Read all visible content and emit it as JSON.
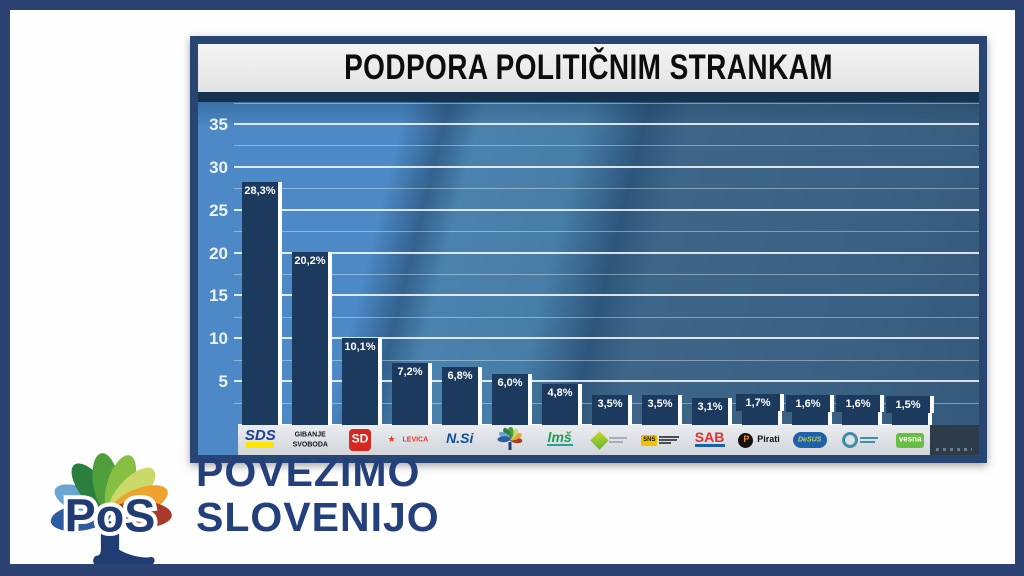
{
  "panel": {
    "title": "PODPORA POLITIČNIM STRANKAM"
  },
  "branding": {
    "logo_text": "PoS",
    "line1": "POVEŽIMO",
    "line2": "SLOVENIJO"
  },
  "colors": {
    "frame": "#2b4273",
    "panel_border": "#294672",
    "title_bar": "#e9e9e9",
    "bar": "#1c3a5e",
    "bar_edge": "#ffffff",
    "brand_navy": "#23407c",
    "strip_bg": "#d8dbe0"
  },
  "chart_data": {
    "type": "bar",
    "title": "PODPORA POLITIČNIM STRANKAM",
    "categories": [
      "SDS",
      "Gibanje Svoboda",
      "SD",
      "Levica",
      "N.Si",
      "Povežimo Slovenijo",
      "LMŠ",
      "Naša dežela",
      "SNS",
      "SAB",
      "Pirati",
      "DeSUS",
      "Dobra država",
      "Vesna"
    ],
    "values": [
      28.3,
      20.2,
      10.1,
      7.2,
      6.8,
      6.0,
      4.8,
      3.5,
      3.5,
      3.1,
      1.7,
      1.6,
      1.6,
      1.5
    ],
    "value_labels": [
      "28,3%",
      "20,2%",
      "10,1%",
      "7,2%",
      "6,8%",
      "6,0%",
      "4,8%",
      "3,5%",
      "3,5%",
      "3,1%",
      "1,7%",
      "1,6%",
      "1,6%",
      "1,5%"
    ],
    "xlabel": "",
    "ylabel": "",
    "y_ticks": [
      5,
      10,
      15,
      20,
      25,
      30,
      35
    ],
    "ylim": [
      0,
      37.5
    ],
    "grid": "horizontal major every 5, minor every 2.5",
    "legend": "none"
  },
  "parties": [
    {
      "name": "SDS",
      "logo": {
        "style": "sds",
        "text": "SDS",
        "color": "#1c3f9d",
        "accent": "#ffe600"
      }
    },
    {
      "name": "Gibanje Svoboda",
      "logo": {
        "style": "stack",
        "lines": [
          "GIBANJE",
          "SVOBODA"
        ],
        "color": "#141414"
      }
    },
    {
      "name": "SD",
      "logo": {
        "style": "badge",
        "text": "SD",
        "bg": "#d6281f",
        "fg": "#ffffff"
      }
    },
    {
      "name": "Levica",
      "logo": {
        "style": "star",
        "text": "LEVICA",
        "color": "#e23b2e"
      }
    },
    {
      "name": "N.Si",
      "logo": {
        "style": "italic",
        "text": "N.Si",
        "color": "#0c4da2"
      }
    },
    {
      "name": "Povežimo Slovenijo",
      "logo": {
        "style": "flower",
        "petals": [
          "#a8392b",
          "#eea22f",
          "#cbd968",
          "#4f9e3b",
          "#2b7f3e",
          "#6aa6cf",
          "#2d5ca3"
        ],
        "trunk": "#1f3d73"
      }
    },
    {
      "name": "LMŠ",
      "logo": {
        "style": "lms",
        "text": "lmš",
        "color": "#1f9e53",
        "accent": "#2aa198"
      }
    },
    {
      "name": "Naša dežela",
      "logo": {
        "style": "diamond",
        "color": "#63b32e",
        "accent": "#c6d831"
      }
    },
    {
      "name": "SNS",
      "logo": {
        "style": "sns",
        "text": "SNS",
        "bg": "#f2c200",
        "fg": "#111111"
      }
    },
    {
      "name": "SAB",
      "logo": {
        "style": "sab",
        "text": "SAB",
        "color": "#e0322c",
        "accent": "#1a61ae"
      }
    },
    {
      "name": "Pirati",
      "logo": {
        "style": "pirati",
        "text": "Pirati",
        "bg": "#111111",
        "fg": "#f08a21"
      }
    },
    {
      "name": "DeSUS",
      "logo": {
        "style": "oval",
        "bg": "#2061ae",
        "fg": "#b8d44e",
        "text": "DeSUS"
      }
    },
    {
      "name": "Dobra država",
      "logo": {
        "style": "dd",
        "color": "#3f8fa8"
      }
    },
    {
      "name": "Vesna",
      "logo": {
        "style": "vesna",
        "text": "vesna",
        "bg": "#68bf3f",
        "fg": "#ffffff"
      }
    }
  ]
}
